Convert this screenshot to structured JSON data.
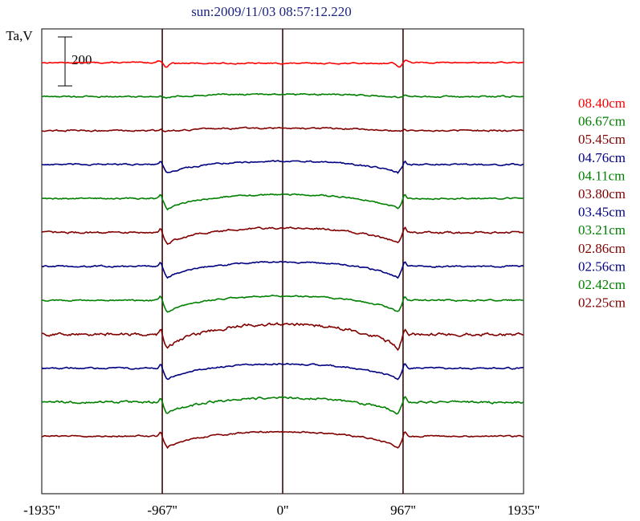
{
  "chart_data": {
    "type": "line",
    "title": "sun:2009/11/03 08:57:12.220",
    "ylabel": "Ta,V",
    "scale_bar_label": "200",
    "scale_bar_value": 200,
    "xlim": [
      -1935,
      1935
    ],
    "x_ticks": [
      {
        "value": -1935,
        "label": "-1935''"
      },
      {
        "value": -967,
        "label": "-967''"
      },
      {
        "value": 0,
        "label": "0''"
      },
      {
        "value": 967,
        "label": "967''"
      },
      {
        "value": 1935,
        "label": "1935''"
      }
    ],
    "reference_lines": [
      -967,
      0,
      967
    ],
    "title_color": "#1a237e",
    "axis_color": "#000000",
    "reference_line_color": "#3a0a0a",
    "series": [
      {
        "name": "08.40cm",
        "color": "#ff0000",
        "profile": "flat_edge_wiggle",
        "amplitude": 10,
        "noise": 1.5
      },
      {
        "name": "06.67cm",
        "color": "#008000",
        "profile": "slight_dip",
        "amplitude": 20,
        "noise": 2
      },
      {
        "name": "05.45cm",
        "color": "#800000",
        "profile": "slight_dip",
        "amplitude": 20,
        "noise": 2
      },
      {
        "name": "04.76cm",
        "color": "#000080",
        "profile": "limb_dip",
        "amplitude": 45,
        "noise": 2
      },
      {
        "name": "04.11cm",
        "color": "#008000",
        "profile": "limb_dip",
        "amplitude": 55,
        "noise": 2
      },
      {
        "name": "03.80cm",
        "color": "#800000",
        "profile": "limb_dip",
        "amplitude": 60,
        "noise": 2.5
      },
      {
        "name": "03.45cm",
        "color": "#000080",
        "profile": "limb_dip",
        "amplitude": 60,
        "noise": 2
      },
      {
        "name": "03.21cm",
        "color": "#008000",
        "profile": "limb_dip",
        "amplitude": 60,
        "noise": 2
      },
      {
        "name": "02.86cm",
        "color": "#800000",
        "profile": "limb_dip_peaked",
        "amplitude": 70,
        "noise": 4
      },
      {
        "name": "02.56cm",
        "color": "#000080",
        "profile": "limb_dip",
        "amplitude": 60,
        "noise": 2
      },
      {
        "name": "02.42cm",
        "color": "#008000",
        "profile": "limb_dip",
        "amplitude": 60,
        "noise": 3
      },
      {
        "name": "02.25cm",
        "color": "#800000",
        "profile": "limb_dip",
        "amplitude": 60,
        "noise": 2
      }
    ]
  }
}
